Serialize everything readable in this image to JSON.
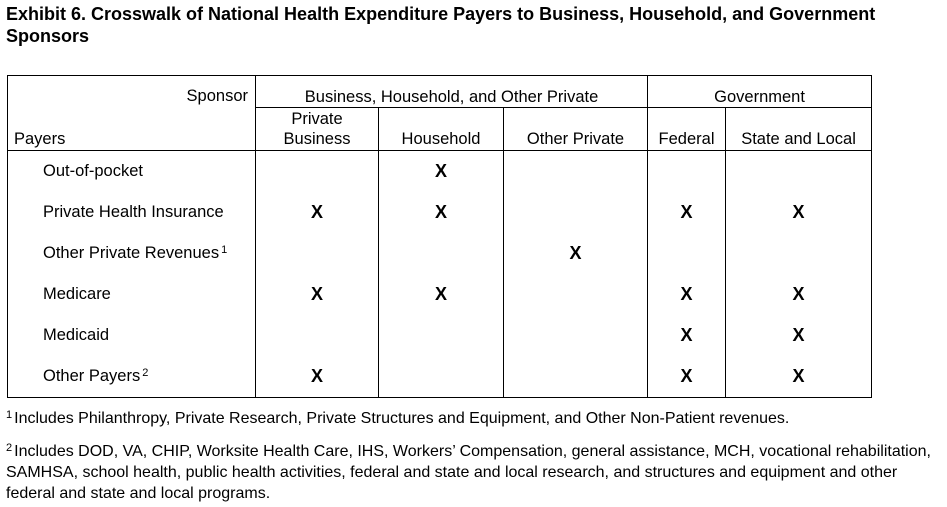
{
  "title": "Exhibit 6. Crosswalk of National Health Expenditure Payers to Business, Household, and Government Sponsors",
  "table": {
    "sponsor_label": "Sponsor",
    "payers_label": "Payers",
    "groups": [
      {
        "label": "Business, Household, and Other Private"
      },
      {
        "label": "Government"
      }
    ],
    "columns": [
      {
        "label": "Private Business"
      },
      {
        "label": "Household"
      },
      {
        "label": "Other Private"
      },
      {
        "label": "Federal"
      },
      {
        "label": "State and Local"
      }
    ],
    "rows": [
      {
        "label": "Out-of-pocket",
        "sup": "",
        "marks": [
          "",
          "X",
          "",
          "",
          ""
        ]
      },
      {
        "label": "Private Health Insurance",
        "sup": "",
        "marks": [
          "X",
          "X",
          "",
          "X",
          "X"
        ]
      },
      {
        "label": "Other Private Revenues",
        "sup": "1",
        "marks": [
          "",
          "",
          "X",
          "",
          ""
        ]
      },
      {
        "label": "Medicare",
        "sup": "",
        "marks": [
          "X",
          "X",
          "",
          "X",
          "X"
        ]
      },
      {
        "label": "Medicaid",
        "sup": "",
        "marks": [
          "",
          "",
          "",
          "X",
          "X"
        ]
      },
      {
        "label": "Other Payers",
        "sup": "2",
        "marks": [
          "X",
          "",
          "",
          "X",
          "X"
        ]
      }
    ]
  },
  "footnotes": [
    {
      "marker": "1",
      "text": "Includes Philanthropy, Private Research, Private Structures and Equipment, and Other Non-Patient revenues."
    },
    {
      "marker": "2",
      "text": "Includes DOD, VA, CHIP, Worksite Health Care, IHS, Workers’ Compensation, general assistance, MCH, vocational rehabilitation, SAMHSA, school health, public health activities, federal and state and local research, and structures and equipment and other federal and state and local programs."
    }
  ]
}
